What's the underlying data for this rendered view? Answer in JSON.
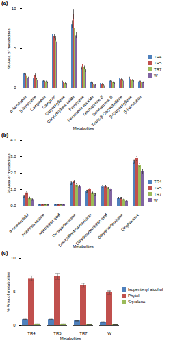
{
  "chart_data": [
    {
      "type": "bar",
      "title": "(a)",
      "x_label": "Metabolites",
      "y_label": "% Area of metabolites",
      "categories": [
        "α-farnesene",
        "β-farnesene",
        "Camphene",
        "Camphor",
        "Caryophyllene",
        "Caryophyllene oxide",
        "Farnesene",
        "Farnesene epoxide",
        "Germacrene B",
        "Germacrene D",
        "Trans-β-Caryophyllene",
        "β-Caryophyllene",
        "β-Farnesene"
      ],
      "series": [
        {
          "name": "TR4",
          "color": "#4f81bd",
          "values": [
            1.8,
            1.2,
            0.9,
            6.8,
            0.8,
            8.0,
            2.5,
            0.7,
            0.6,
            0.9,
            1.2,
            1.3,
            0.8
          ],
          "errors": [
            0.1,
            0.1,
            0.1,
            0.3,
            0.1,
            0.5,
            0.2,
            0.1,
            0.1,
            0.1,
            0.1,
            0.1,
            0.1
          ]
        },
        {
          "name": "TR5",
          "color": "#c0504d",
          "values": [
            1.7,
            1.6,
            0.8,
            6.5,
            0.7,
            9.3,
            3.0,
            0.6,
            0.5,
            0.8,
            1.1,
            1.1,
            0.8
          ],
          "errors": [
            0.1,
            0.2,
            0.1,
            0.3,
            0.1,
            0.6,
            0.2,
            0.1,
            0.1,
            0.1,
            0.1,
            0.1,
            0.1
          ]
        },
        {
          "name": "TR7",
          "color": "#9bbb59",
          "values": [
            1.5,
            1.2,
            0.8,
            6.2,
            0.6,
            7.5,
            2.6,
            0.5,
            0.4,
            0.7,
            1.0,
            1.0,
            0.7
          ],
          "errors": [
            0.1,
            0.1,
            0.1,
            0.3,
            0.1,
            0.4,
            0.2,
            0.1,
            0.1,
            0.1,
            0.1,
            0.1,
            0.1
          ]
        },
        {
          "name": "W",
          "color": "#8064a2",
          "values": [
            1.3,
            1.0,
            0.7,
            5.8,
            0.5,
            6.6,
            2.2,
            0.4,
            0.3,
            0.6,
            0.9,
            0.9,
            0.7
          ],
          "errors": [
            0.1,
            0.1,
            0.1,
            0.3,
            0.1,
            0.4,
            0.2,
            0.1,
            0.1,
            0.1,
            0.1,
            0.1,
            0.1
          ]
        }
      ],
      "ylim": [
        0,
        10
      ],
      "yticks": [
        0,
        5,
        10
      ],
      "legend": "right"
    },
    {
      "type": "bar",
      "title": "(b)",
      "x_label": "Metabolites",
      "y_label": "% Area of metabolites",
      "categories": [
        "9-oxonerolidol",
        "Artemisia ketone",
        "Artemisinic acid",
        "Deoxyartemisinin",
        "Deoxydihydroartemisinin",
        "Dihydroartemisinic acid",
        "Dihydroartemisinin",
        "Qinghaosu-c"
      ],
      "series": [
        {
          "name": "TR4",
          "color": "#4f81bd",
          "values": [
            0.6,
            0.1,
            0.1,
            1.4,
            0.9,
            1.2,
            0.5,
            2.7
          ],
          "errors": [
            0.05,
            0.02,
            0.02,
            0.08,
            0.06,
            0.06,
            0.04,
            0.1
          ]
        },
        {
          "name": "TR5",
          "color": "#c0504d",
          "values": [
            0.8,
            0.1,
            0.1,
            1.5,
            1.0,
            1.2,
            0.5,
            2.9
          ],
          "errors": [
            0.06,
            0.02,
            0.02,
            0.08,
            0.06,
            0.06,
            0.04,
            0.12
          ]
        },
        {
          "name": "TR7",
          "color": "#9bbb59",
          "values": [
            0.5,
            0.1,
            0.1,
            1.3,
            0.8,
            1.1,
            0.4,
            2.5
          ],
          "errors": [
            0.05,
            0.02,
            0.02,
            0.07,
            0.05,
            0.05,
            0.03,
            0.1
          ]
        },
        {
          "name": "W",
          "color": "#8064a2",
          "values": [
            0.4,
            0.1,
            0.1,
            1.2,
            0.7,
            1.0,
            0.3,
            2.1
          ],
          "errors": [
            0.04,
            0.02,
            0.02,
            0.06,
            0.05,
            0.05,
            0.03,
            0.1
          ]
        }
      ],
      "ylim": [
        0,
        4
      ],
      "yticks": [
        0,
        1,
        2,
        3,
        4
      ],
      "legend": "right"
    },
    {
      "type": "bar",
      "title": "(c)",
      "x_label": "Metabolites",
      "y_label": "% Area of metabolites",
      "categories": [
        "TR4",
        "TR5",
        "TR7",
        "W"
      ],
      "series": [
        {
          "name": "Isopentenyl alcohol",
          "color": "#4f81bd",
          "values": [
            0.9,
            0.9,
            0.7,
            0.5
          ],
          "errors": [
            0.05,
            0.05,
            0.04,
            0.04
          ]
        },
        {
          "name": "Phytol",
          "color": "#c0504d",
          "values": [
            7.0,
            7.3,
            6.0,
            4.9
          ],
          "errors": [
            0.35,
            0.4,
            0.3,
            0.25
          ]
        },
        {
          "name": "Squalene",
          "color": "#9bbb59",
          "values": [
            0.2,
            0.2,
            0.15,
            0.1
          ],
          "errors": [
            0.02,
            0.02,
            0.02,
            0.02
          ]
        }
      ],
      "ylim": [
        0,
        10
      ],
      "yticks": [
        0,
        5,
        10
      ],
      "legend": "right"
    }
  ]
}
